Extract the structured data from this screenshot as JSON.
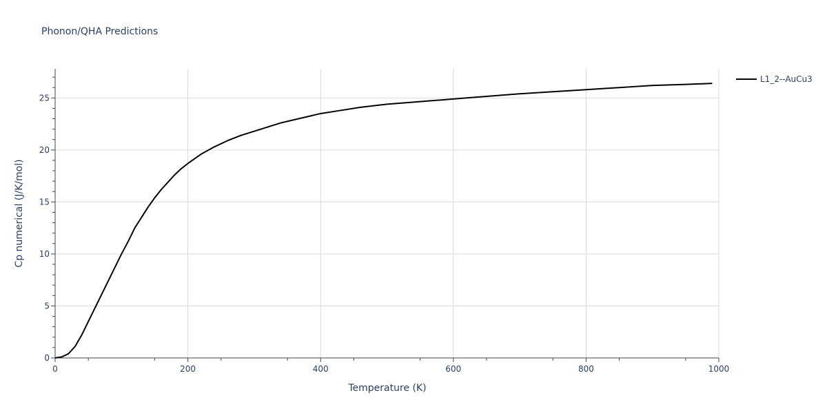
{
  "chart_data": {
    "type": "line",
    "title": "Phonon/QHA Predictions",
    "xlabel": "Temperature (K)",
    "ylabel": "Cp numerical (J/K/mol)",
    "xlim": [
      0,
      1000
    ],
    "ylim": [
      0,
      27.8
    ],
    "xticks": [
      0,
      200,
      400,
      600,
      800,
      1000
    ],
    "yticks": [
      0,
      5,
      10,
      15,
      20,
      25
    ],
    "grid": true,
    "legend_position": "top-right",
    "series": [
      {
        "name": "L1_2--AuCu3",
        "color": "#000000",
        "x": [
          0,
          10,
          20,
          30,
          40,
          50,
          60,
          70,
          80,
          90,
          100,
          110,
          120,
          130,
          140,
          150,
          160,
          170,
          180,
          190,
          200,
          220,
          240,
          260,
          280,
          300,
          320,
          340,
          360,
          380,
          400,
          430,
          460,
          500,
          540,
          580,
          620,
          660,
          700,
          750,
          800,
          850,
          900,
          950,
          990
        ],
        "y": [
          0,
          0.1,
          0.4,
          1.1,
          2.2,
          3.5,
          4.8,
          6.1,
          7.4,
          8.7,
          10.0,
          11.2,
          12.5,
          13.5,
          14.5,
          15.4,
          16.2,
          16.9,
          17.6,
          18.2,
          18.7,
          19.6,
          20.3,
          20.9,
          21.4,
          21.8,
          22.2,
          22.6,
          22.9,
          23.2,
          23.5,
          23.8,
          24.1,
          24.4,
          24.6,
          24.8,
          25.0,
          25.2,
          25.4,
          25.6,
          25.8,
          26.0,
          26.2,
          26.3,
          26.4
        ]
      }
    ]
  }
}
